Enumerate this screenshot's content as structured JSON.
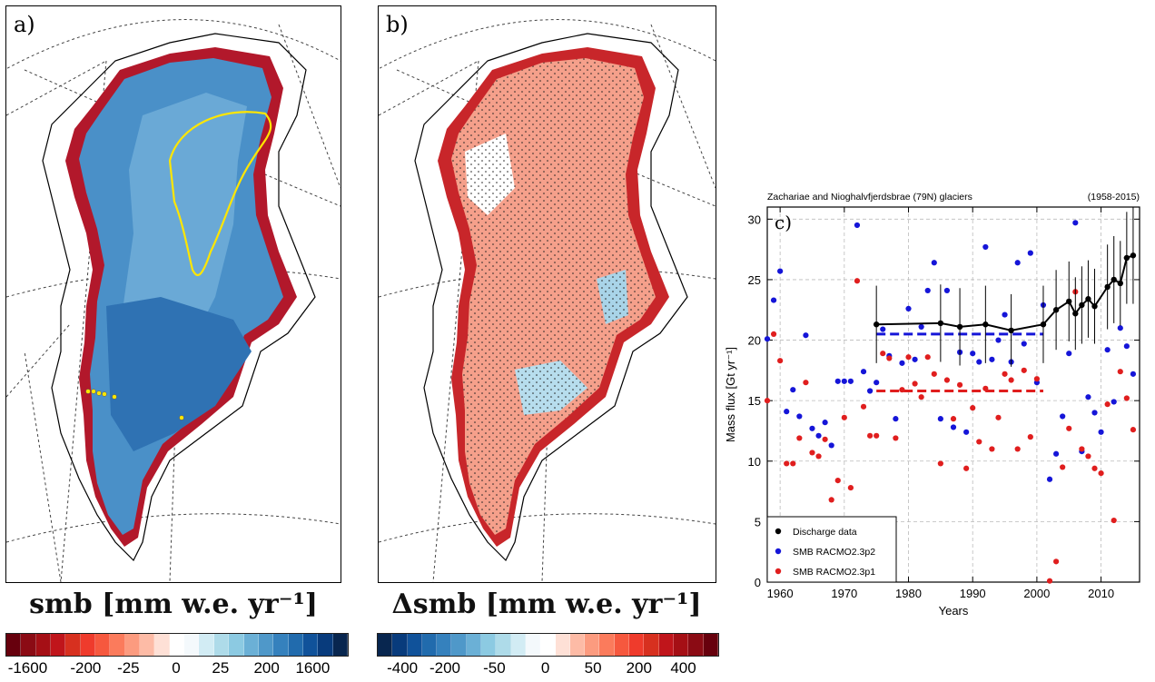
{
  "panel_a": {
    "label": "a)"
  },
  "panel_b": {
    "label": "b)"
  },
  "colorbar_a": {
    "title": "smb [mm w.e. yr⁻¹]",
    "colors": [
      "#67000d",
      "#8b0b14",
      "#a50f15",
      "#c0151b",
      "#d7301f",
      "#ef3b2c",
      "#f6583e",
      "#fb7b5c",
      "#fc9b7f",
      "#fdbba6",
      "#fee0d6",
      "#ffffff",
      "#f4f9fc",
      "#d2ecf4",
      "#aedbe9",
      "#8ccae2",
      "#6bb0d6",
      "#4f98c9",
      "#3581bd",
      "#216bad",
      "#10529a",
      "#083b7c",
      "#08264f"
    ],
    "ticks": [
      {
        "label": "-1600",
        "pos": 0.065
      },
      {
        "label": "-200",
        "pos": 0.235
      },
      {
        "label": "-25",
        "pos": 0.36
      },
      {
        "label": "0",
        "pos": 0.5
      },
      {
        "label": "25",
        "pos": 0.63
      },
      {
        "label": "200",
        "pos": 0.765
      },
      {
        "label": "1600",
        "pos": 0.9
      }
    ]
  },
  "colorbar_b": {
    "title": "Δsmb [mm w.e. yr⁻¹]",
    "colors": [
      "#08264f",
      "#083b7c",
      "#10529a",
      "#216bad",
      "#3581bd",
      "#4f98c9",
      "#6bb0d6",
      "#8ccae2",
      "#aedbe9",
      "#d2ecf4",
      "#f4f9fc",
      "#ffffff",
      "#fee0d6",
      "#fdbba6",
      "#fc9b7f",
      "#fb7b5c",
      "#f6583e",
      "#ef3b2c",
      "#d7301f",
      "#c0151b",
      "#a50f15",
      "#8b0b14",
      "#67000d"
    ],
    "ticks": [
      {
        "label": "-400",
        "pos": 0.075
      },
      {
        "label": "-200",
        "pos": 0.2
      },
      {
        "label": "-50",
        "pos": 0.345
      },
      {
        "label": "0",
        "pos": 0.495
      },
      {
        "label": "50",
        "pos": 0.635
      },
      {
        "label": "200",
        "pos": 0.77
      },
      {
        "label": "400",
        "pos": 0.9
      }
    ]
  },
  "chart_data": {
    "type": "scatter",
    "panel_label": "c)",
    "title_left": "Zachariae and Nioghalvfjerdsbrae (79N) glaciers",
    "title_right": "(1958-2015)",
    "xlabel": "Years",
    "ylabel": "Mass flux [Gt yr⁻¹]",
    "xlim": [
      1958,
      2016
    ],
    "ylim": [
      0,
      31
    ],
    "xticks": [
      1960,
      1970,
      1980,
      1990,
      2000,
      2010
    ],
    "yticks": [
      0,
      5,
      10,
      15,
      20,
      25,
      30
    ],
    "grid": true,
    "legend_position": "bottom-left",
    "series": [
      {
        "name": "Discharge data",
        "color": "#000000",
        "style": "line-errorbar",
        "x": [
          1975,
          1985,
          1988,
          1992,
          1996,
          2001,
          2003,
          2005,
          2006,
          2007,
          2008,
          2009,
          2011,
          2012,
          2013,
          2014,
          2015
        ],
        "y": [
          21.3,
          21.4,
          21.1,
          21.3,
          20.8,
          21.3,
          22.5,
          23.2,
          22.2,
          22.9,
          23.4,
          22.8,
          24.4,
          25.0,
          24.7,
          26.8,
          27.0
        ],
        "err": [
          3.2,
          3.2,
          3.2,
          3.2,
          3.0,
          3.2,
          3.3,
          3.3,
          3.0,
          3.2,
          3.2,
          3.1,
          3.5,
          3.6,
          3.5,
          3.8,
          4.0
        ]
      },
      {
        "name": "SMB RACMO2.3p2",
        "color": "#1515d8",
        "style": "points",
        "x": [
          1958,
          1959,
          1960,
          1961,
          1962,
          1963,
          1964,
          1965,
          1966,
          1967,
          1968,
          1969,
          1970,
          1971,
          1972,
          1973,
          1974,
          1975,
          1976,
          1977,
          1978,
          1979,
          1980,
          1981,
          1982,
          1983,
          1984,
          1985,
          1986,
          1987,
          1988,
          1989,
          1990,
          1991,
          1992,
          1993,
          1994,
          1995,
          1996,
          1997,
          1998,
          1999,
          2000,
          2001,
          2002,
          2003,
          2004,
          2005,
          2006,
          2007,
          2008,
          2009,
          2010,
          2011,
          2012,
          2013,
          2014,
          2015
        ],
        "y": [
          20.1,
          23.3,
          25.7,
          14.1,
          15.9,
          13.7,
          20.4,
          12.7,
          12.1,
          13.2,
          11.3,
          16.6,
          16.6,
          16.6,
          29.5,
          17.4,
          15.8,
          16.5,
          20.9,
          18.7,
          13.5,
          18.1,
          22.6,
          18.4,
          21.1,
          24.1,
          26.4,
          13.5,
          24.1,
          12.8,
          19.0,
          12.4,
          18.9,
          18.2,
          27.7,
          18.4,
          20.0,
          22.1,
          18.2,
          26.4,
          19.7,
          27.2,
          16.5,
          22.9,
          8.5,
          10.6,
          13.7,
          18.9,
          29.7,
          10.8,
          15.3,
          14.0,
          12.4,
          19.2,
          14.9,
          21.0,
          19.5,
          17.2
        ]
      },
      {
        "name": "SMB RACMO2.3p1",
        "color": "#e01e1e",
        "style": "points",
        "x": [
          1958,
          1959,
          1960,
          1961,
          1962,
          1963,
          1964,
          1965,
          1966,
          1967,
          1968,
          1969,
          1970,
          1971,
          1972,
          1973,
          1974,
          1975,
          1976,
          1977,
          1978,
          1979,
          1980,
          1981,
          1982,
          1983,
          1984,
          1985,
          1986,
          1987,
          1988,
          1989,
          1990,
          1991,
          1992,
          1993,
          1994,
          1995,
          1996,
          1997,
          1998,
          1999,
          2000,
          2001,
          2002,
          2003,
          2004,
          2005,
          2006,
          2007,
          2008,
          2009,
          2010,
          2011,
          2012,
          2013,
          2014,
          2015
        ],
        "y": [
          15.0,
          20.5,
          18.3,
          9.8,
          9.8,
          11.9,
          16.5,
          10.7,
          10.4,
          11.8,
          6.8,
          8.4,
          13.6,
          7.8,
          24.9,
          14.5,
          12.1,
          12.1,
          18.9,
          18.5,
          11.9,
          15.9,
          18.6,
          16.4,
          15.3,
          18.6,
          17.2,
          9.8,
          16.7,
          13.5,
          16.3,
          9.4,
          14.4,
          11.6,
          16.0,
          11.0,
          13.6,
          17.2,
          16.7,
          11.0,
          17.5,
          12.0,
          16.8,
          21.3,
          0.1,
          1.7,
          9.5,
          12.7,
          24.0,
          11.0,
          10.4,
          9.4,
          9.0,
          14.7,
          5.1,
          17.4,
          15.2,
          12.6
        ]
      },
      {
        "name": "mean RACMO2.3p2",
        "color": "#1515d8",
        "style": "dashed",
        "x": [
          1975,
          2001
        ],
        "y": [
          20.5,
          20.5
        ]
      },
      {
        "name": "mean RACMO2.3p1",
        "color": "#e01e1e",
        "style": "dashed",
        "x": [
          1975,
          2001
        ],
        "y": [
          15.8,
          15.8
        ]
      }
    ]
  }
}
